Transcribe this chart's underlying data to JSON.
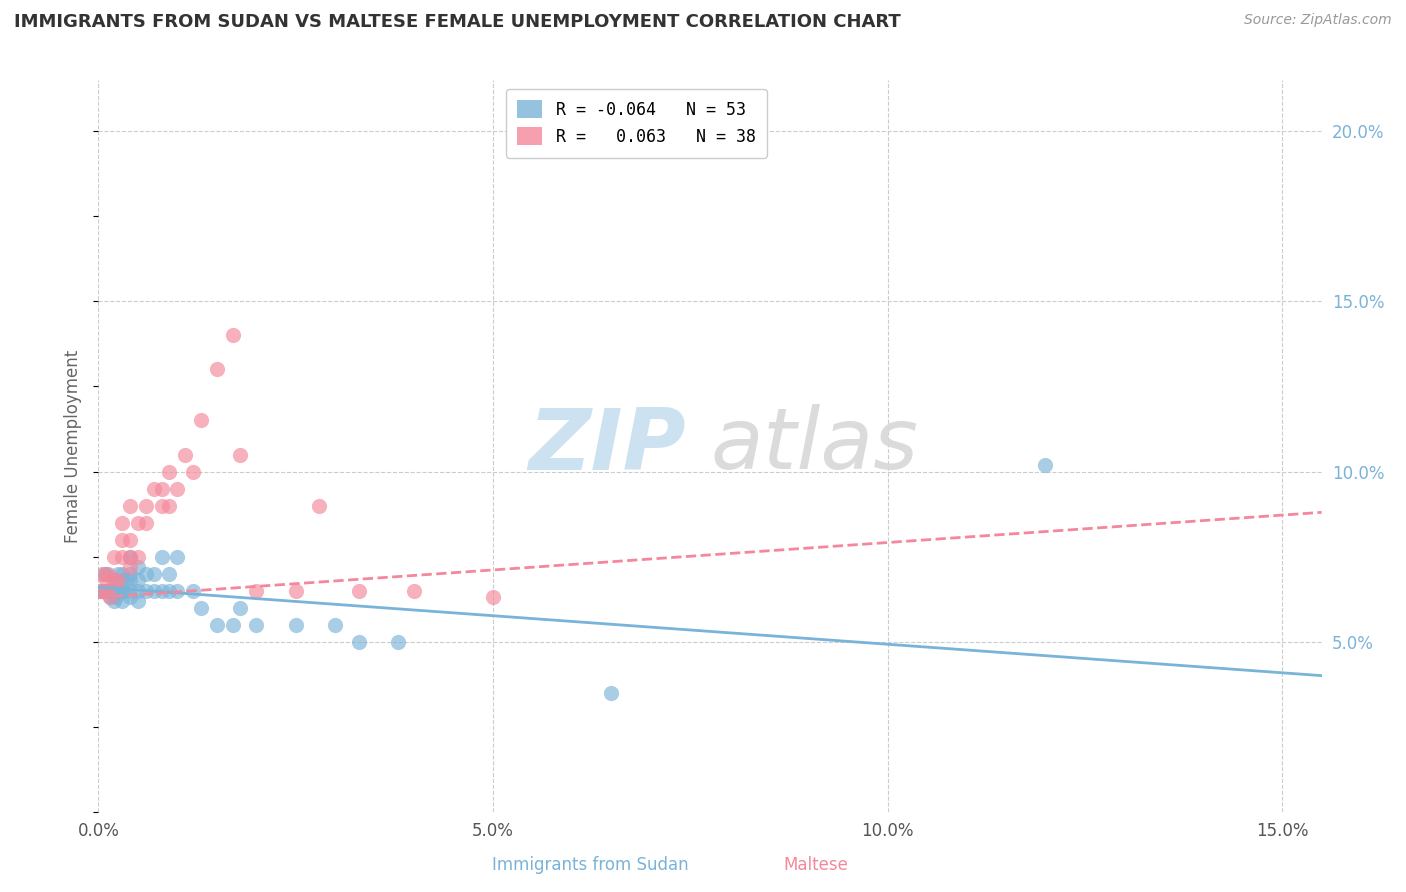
{
  "title": "IMMIGRANTS FROM SUDAN VS MALTESE FEMALE UNEMPLOYMENT CORRELATION CHART",
  "source": "Source: ZipAtlas.com",
  "ylabel": "Female Unemployment",
  "xlim": [
    0.0,
    0.155
  ],
  "ylim": [
    0.0,
    0.215
  ],
  "x_ticks": [
    0.0,
    0.05,
    0.1,
    0.15
  ],
  "x_tick_labels": [
    "0.0%",
    "5.0%",
    "10.0%",
    "15.0%"
  ],
  "y_ticks_right": [
    0.05,
    0.1,
    0.15,
    0.2
  ],
  "y_tick_labels_right": [
    "5.0%",
    "10.0%",
    "15.0%",
    "20.0%"
  ],
  "watermark_zip": "ZIP",
  "watermark_atlas": "atlas",
  "legend_R1": "R =",
  "legend_R1_val": "-0.064",
  "legend_N1": "N = 53",
  "legend_R2": "R =",
  "legend_R2_val": "0.063",
  "legend_N2": "N = 38",
  "bottom_label1": "Immigrants from Sudan",
  "bottom_label2": "Maltese",
  "sudan_scatter_x": [
    0.0003,
    0.0005,
    0.0008,
    0.001,
    0.001,
    0.001,
    0.0012,
    0.0015,
    0.0015,
    0.002,
    0.002,
    0.002,
    0.0022,
    0.0022,
    0.0025,
    0.0025,
    0.003,
    0.003,
    0.003,
    0.003,
    0.003,
    0.0035,
    0.004,
    0.004,
    0.004,
    0.004,
    0.004,
    0.005,
    0.005,
    0.005,
    0.005,
    0.006,
    0.006,
    0.007,
    0.007,
    0.008,
    0.008,
    0.009,
    0.009,
    0.01,
    0.01,
    0.012,
    0.013,
    0.015,
    0.017,
    0.018,
    0.02,
    0.025,
    0.03,
    0.033,
    0.038,
    0.065,
    0.12
  ],
  "sudan_scatter_y": [
    0.065,
    0.065,
    0.07,
    0.065,
    0.065,
    0.07,
    0.065,
    0.063,
    0.065,
    0.062,
    0.065,
    0.068,
    0.063,
    0.065,
    0.065,
    0.07,
    0.062,
    0.065,
    0.065,
    0.068,
    0.07,
    0.068,
    0.063,
    0.065,
    0.068,
    0.07,
    0.075,
    0.062,
    0.065,
    0.068,
    0.072,
    0.065,
    0.07,
    0.065,
    0.07,
    0.065,
    0.075,
    0.065,
    0.07,
    0.065,
    0.075,
    0.065,
    0.06,
    0.055,
    0.055,
    0.06,
    0.055,
    0.055,
    0.055,
    0.05,
    0.05,
    0.035,
    0.102
  ],
  "maltese_scatter_x": [
    0.0003,
    0.0005,
    0.001,
    0.001,
    0.0012,
    0.0015,
    0.002,
    0.002,
    0.0025,
    0.003,
    0.003,
    0.003,
    0.004,
    0.004,
    0.004,
    0.004,
    0.005,
    0.005,
    0.006,
    0.006,
    0.007,
    0.008,
    0.008,
    0.009,
    0.009,
    0.01,
    0.011,
    0.012,
    0.013,
    0.015,
    0.017,
    0.018,
    0.02,
    0.025,
    0.028,
    0.033,
    0.04,
    0.05
  ],
  "maltese_scatter_y": [
    0.065,
    0.07,
    0.065,
    0.068,
    0.07,
    0.063,
    0.068,
    0.075,
    0.068,
    0.075,
    0.08,
    0.085,
    0.072,
    0.075,
    0.08,
    0.09,
    0.075,
    0.085,
    0.085,
    0.09,
    0.095,
    0.09,
    0.095,
    0.09,
    0.1,
    0.095,
    0.105,
    0.1,
    0.115,
    0.13,
    0.14,
    0.105,
    0.065,
    0.065,
    0.09,
    0.065,
    0.065,
    0.063
  ],
  "sudan_color": "#7ab3d8",
  "maltese_color": "#f4879a",
  "background_color": "#ffffff",
  "grid_color": "#cccccc"
}
